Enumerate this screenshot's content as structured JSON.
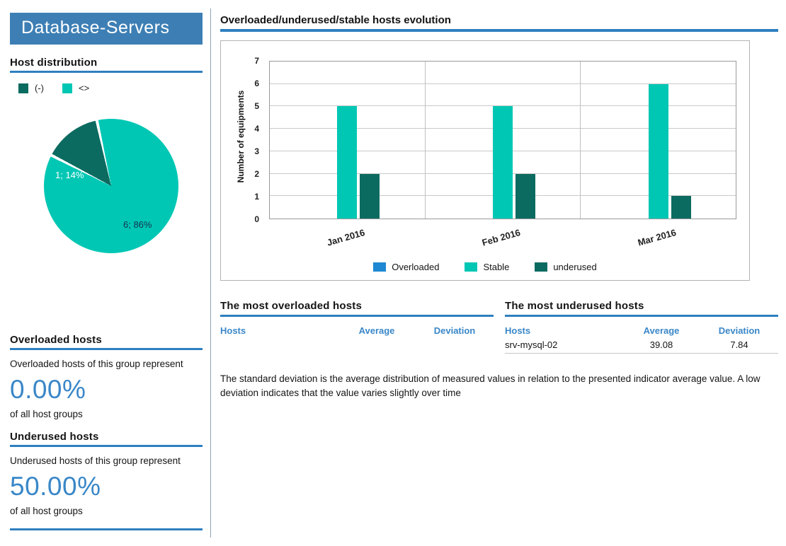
{
  "colors": {
    "header_bg": "#3d7fb5",
    "rule_blue": "#2e7fc0",
    "accent_blue": "#3a87c8",
    "overloaded_blue": "#1e88d2",
    "stable_teal": "#00c7b4",
    "underused_dark_teal": "#0c6b60"
  },
  "sidebar": {
    "title": "Database-Servers",
    "host_distribution": {
      "heading": "Host distribution",
      "legend": [
        {
          "label": "(-)",
          "color": "#0c6b60"
        },
        {
          "label": "<>",
          "color": "#00c7b4"
        }
      ]
    },
    "overloaded": {
      "heading": "Overloaded hosts",
      "text": "Overloaded hosts of this group represent",
      "percent": "0.00%",
      "caption": "of all host groups"
    },
    "underused": {
      "heading": "Underused hosts",
      "text": "Underused hosts of this group represent",
      "percent": "50.00%",
      "caption": "of all host groups"
    }
  },
  "main": {
    "chart_heading": "Overloaded/underused/stable hosts evolution",
    "overloaded_table": {
      "title": "The most overloaded hosts",
      "headers": [
        "Hosts",
        "Average",
        "Deviation"
      ],
      "rows": []
    },
    "underused_table": {
      "title": "The most underused hosts",
      "headers": [
        "Hosts",
        "Average",
        "Deviation"
      ],
      "rows": [
        [
          "srv-mysql-02",
          "39.08",
          "7.84"
        ]
      ]
    },
    "note": "The standard deviation is the average distribution of measured values in relation to the presented indicator average value. A low  deviation indicates that the value varies slightly over time"
  },
  "chart_data": [
    {
      "type": "bar",
      "title": "Overloaded/underused/stable hosts evolution",
      "categories": [
        "Jan 2016",
        "Feb 2016",
        "Mar 2016"
      ],
      "series": [
        {
          "name": "Overloaded",
          "color": "#1e88d2",
          "values": [
            0,
            0,
            0
          ]
        },
        {
          "name": "Stable",
          "color": "#00c7b4",
          "values": [
            5,
            5,
            6
          ]
        },
        {
          "name": "underused",
          "color": "#0c6b60",
          "values": [
            2,
            2,
            1
          ]
        }
      ],
      "xlabel": "",
      "ylabel": "Number of equipments",
      "ylim": [
        0,
        7
      ],
      "ytick_step": 1,
      "grid": true,
      "legend_position": "bottom"
    },
    {
      "type": "pie",
      "title": "Host distribution",
      "slices": [
        {
          "label": "1; 14%",
          "value": 1,
          "pct": 14,
          "color": "#0c6b60"
        },
        {
          "label": "6; 86%",
          "value": 6,
          "pct": 86,
          "color": "#00c7b4"
        }
      ],
      "legend_position": "top"
    }
  ]
}
